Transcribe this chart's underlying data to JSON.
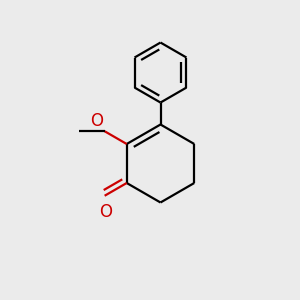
{
  "background_color": "#ebebeb",
  "bond_color": "#000000",
  "oxygen_color": "#cc0000",
  "line_width": 1.6,
  "font_size_atom": 11,
  "fig_width": 3.0,
  "fig_height": 3.0,
  "dpi": 100
}
